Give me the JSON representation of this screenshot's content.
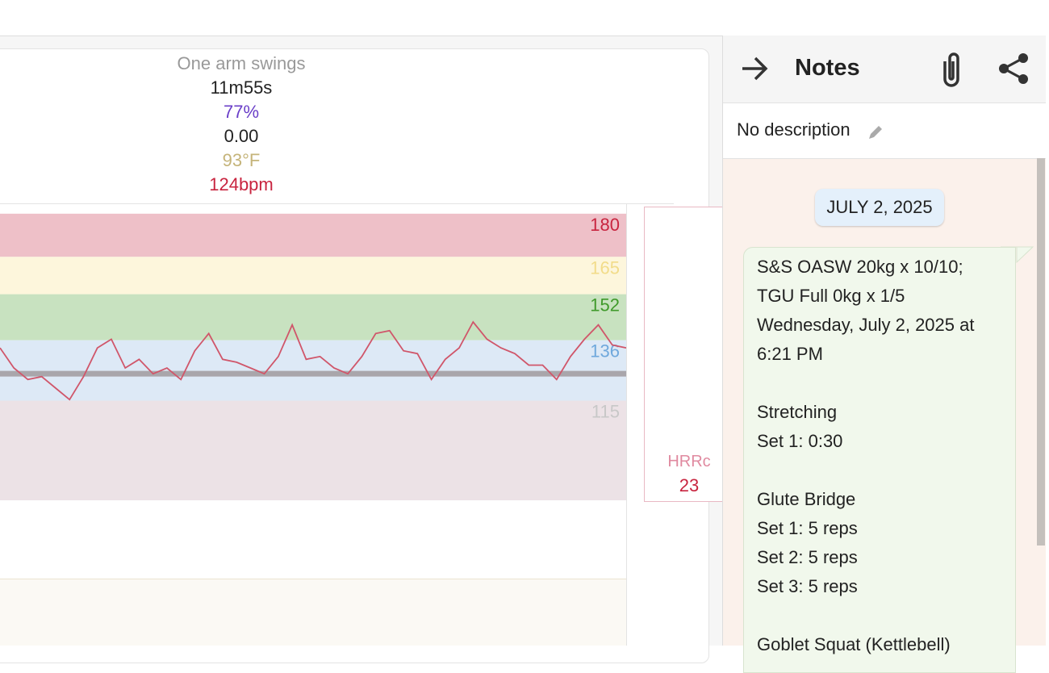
{
  "summary": {
    "activity": "One arm swings",
    "duration": "11m55s",
    "percent": "77%",
    "distance": "0.00",
    "temperature": "93°F",
    "heart_rate": "124bpm"
  },
  "hr_chart": {
    "type": "line",
    "ylim": [
      84,
      185
    ],
    "zones": [
      180,
      165,
      152,
      136,
      115
    ],
    "zone_colors": [
      "#c8243f",
      "#f2dc8a",
      "#3f9a2a",
      "#6fa8dc",
      "#c8c8c8"
    ],
    "band_colors": [
      "#eec0c8",
      "#fdf6dc",
      "#c8e2c0",
      "#dde9f6",
      "#ece2e6"
    ],
    "average": 128,
    "color": "#d0566a",
    "values": [
      137,
      130,
      126,
      127,
      123,
      119,
      127,
      137,
      140,
      130,
      133,
      128,
      130,
      126,
      136,
      142,
      133,
      132,
      130,
      128,
      134,
      145,
      133,
      134,
      130,
      128,
      134,
      142,
      143,
      136,
      135,
      126,
      133,
      137,
      146,
      140,
      137,
      135,
      131,
      131,
      126,
      134,
      140,
      145,
      138,
      137
    ]
  },
  "recovery": {
    "label": "HRRc",
    "value": "23"
  },
  "notes": {
    "title": "Notes",
    "description": "No description",
    "date": "JULY 2, 2025",
    "paragraphs": [
      [
        "S&S OASW 20kg x 10/10;",
        "TGU Full 0kg x 1/5",
        "Wednesday, July 2, 2025 at",
        "6:21 PM"
      ],
      [
        "Stretching",
        "Set 1: 0:30"
      ],
      [
        "Glute Bridge",
        "Set 1: 5 reps",
        "Set 2: 5 reps",
        "Set 3: 5 reps"
      ],
      [
        "Goblet Squat (Kettlebell)"
      ]
    ]
  }
}
